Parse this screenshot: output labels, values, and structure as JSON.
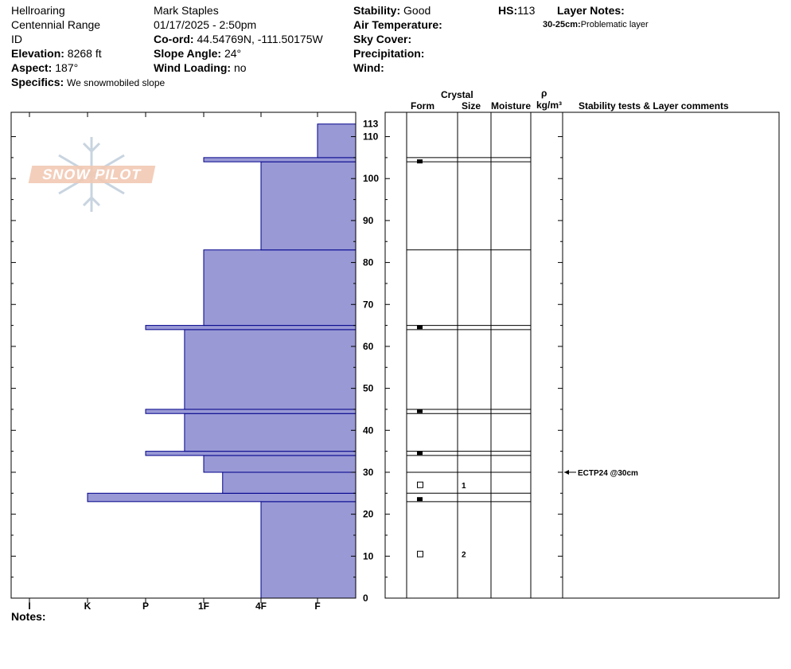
{
  "header": {
    "location": "Hellroaring",
    "range": "Centennial Range",
    "state": "ID",
    "elevation_label": "Elevation:",
    "elevation_value": "8268 ft",
    "aspect_label": "Aspect:",
    "aspect_value": "187°",
    "specifics_label": "Specifics:",
    "specifics_value": "We snowmobiled slope",
    "observer": "Mark Staples",
    "datetime": "01/17/2025 - 2:50pm",
    "coord_label": "Co-ord:",
    "coord_value": "44.54769N, -111.50175W",
    "slope_label": "Slope Angle:",
    "slope_value": "24°",
    "wind_loading_label": "Wind Loading:",
    "wind_loading_value": "no",
    "stability_label": "Stability:",
    "stability_value": "Good",
    "air_temp_label": "Air Temperature:",
    "sky_cover_label": "Sky Cover:",
    "precip_label": "Precipitation:",
    "wind_label": "Wind:",
    "hs_label": "HS:",
    "hs_value": "113",
    "layer_notes_label": "Layer Notes:",
    "layer_note_range": "30-25cm:",
    "layer_note_text": "Problematic layer"
  },
  "columns": {
    "crystal": "Crystal",
    "form": "Form",
    "size": "Size",
    "moisture": "Moisture",
    "rho": "ρ",
    "density_unit": "kg/m³",
    "stability": "Stability tests & Layer comments"
  },
  "notes_label": "Notes:",
  "logo_text": "SNOW PILOT",
  "stability_test": "ECTP24 @30cm",
  "colors": {
    "bar_fill": "#9999d6",
    "bar_stroke": "#00008b",
    "logo": "#f2c9b4"
  },
  "chart_data": {
    "type": "bar",
    "orientation": "horizontal",
    "x_ticks": [
      "I",
      "K",
      "P",
      "1F",
      "4F",
      "F"
    ],
    "y_ticks": [
      0,
      10,
      20,
      30,
      40,
      50,
      60,
      70,
      80,
      90,
      100,
      110,
      113
    ],
    "ylim": [
      0,
      113
    ],
    "layers": [
      {
        "bottom": 0,
        "top": 23,
        "hardness": "4F"
      },
      {
        "bottom": 23,
        "top": 25,
        "hardness": "K"
      },
      {
        "bottom": 25,
        "top": 30,
        "hardness": "1F+"
      },
      {
        "bottom": 30,
        "top": 34,
        "hardness": "1F"
      },
      {
        "bottom": 34,
        "top": 35,
        "hardness": "P"
      },
      {
        "bottom": 35,
        "top": 44,
        "hardness": "1F-"
      },
      {
        "bottom": 44,
        "top": 45,
        "hardness": "P"
      },
      {
        "bottom": 45,
        "top": 64,
        "hardness": "1F-"
      },
      {
        "bottom": 64,
        "top": 65,
        "hardness": "P"
      },
      {
        "bottom": 65,
        "top": 83,
        "hardness": "1F"
      },
      {
        "bottom": 83,
        "top": 104,
        "hardness": "4F"
      },
      {
        "bottom": 104,
        "top": 105,
        "hardness": "1F"
      },
      {
        "bottom": 105,
        "top": 113,
        "hardness": "F"
      }
    ],
    "crystal_rows": [
      {
        "depth": 104,
        "form": "filled-square",
        "size": ""
      },
      {
        "depth": 64.5,
        "form": "filled-square",
        "size": ""
      },
      {
        "depth": 44.5,
        "form": "filled-square",
        "size": ""
      },
      {
        "depth": 34.5,
        "form": "filled-square",
        "size": ""
      },
      {
        "depth": 27,
        "form": "open-square",
        "size": "1"
      },
      {
        "depth": 23.5,
        "form": "filled-square",
        "size": ""
      },
      {
        "depth": 10.5,
        "form": "open-square",
        "size": "2"
      }
    ],
    "stability_tests": [
      {
        "depth": 30,
        "label": "ECTP24 @30cm"
      }
    ]
  }
}
